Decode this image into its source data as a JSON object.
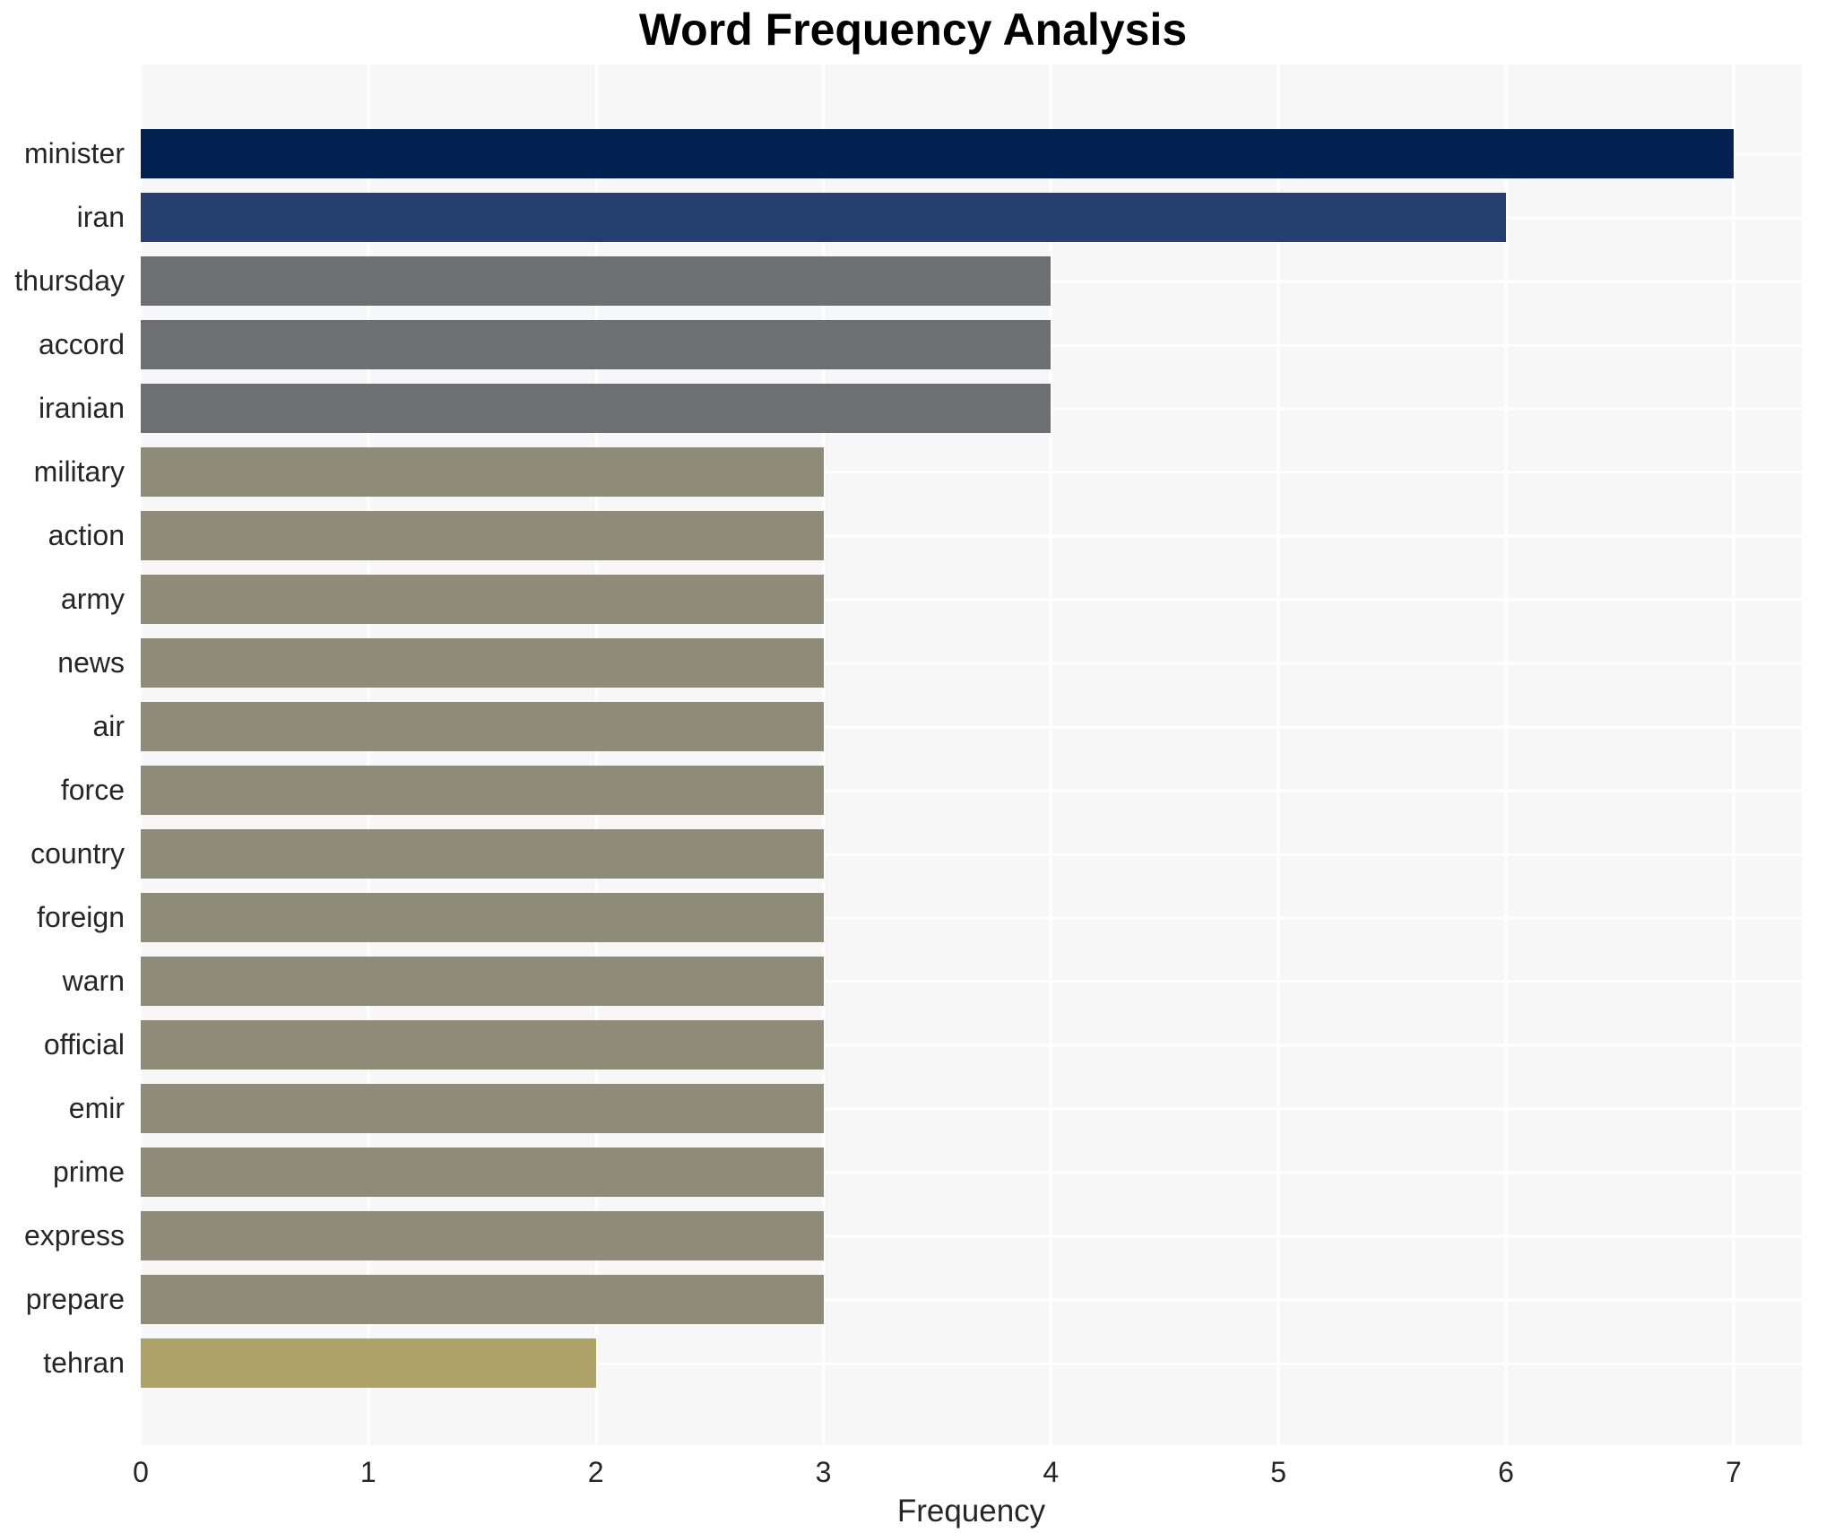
{
  "title": "Word Frequency Analysis",
  "chart_data": {
    "type": "bar",
    "orientation": "horizontal",
    "title": "Word Frequency Analysis",
    "xlabel": "Frequency",
    "ylabel": "",
    "categories": [
      "minister",
      "iran",
      "thursday",
      "accord",
      "iranian",
      "military",
      "action",
      "army",
      "news",
      "air",
      "force",
      "country",
      "foreign",
      "warn",
      "official",
      "emir",
      "prime",
      "express",
      "prepare",
      "tehran"
    ],
    "values": [
      7,
      6,
      4,
      4,
      4,
      3,
      3,
      3,
      3,
      3,
      3,
      3,
      3,
      3,
      3,
      3,
      3,
      3,
      3,
      2
    ],
    "bar_colors": [
      "#032150",
      "#253f6e",
      "#6e6f72",
      "#6e6f72",
      "#6e6f72",
      "#8e8b78",
      "#8e8b78",
      "#8e8b78",
      "#8e8b78",
      "#8e8b78",
      "#8e8b78",
      "#8e8b78",
      "#8e8b78",
      "#8e8b78",
      "#8e8b78",
      "#8e8b78",
      "#8e8b78",
      "#8e8b78",
      "#8e8b78",
      "#ada268"
    ],
    "xticks": [
      0,
      1,
      2,
      3,
      4,
      5,
      6,
      7
    ],
    "xlim": [
      0,
      7.3
    ],
    "grid": true,
    "legend": "none",
    "plot_background": "#f7f7f7",
    "grid_color": "#ffffff",
    "text_color": "#262626",
    "title_color": "#000000"
  }
}
